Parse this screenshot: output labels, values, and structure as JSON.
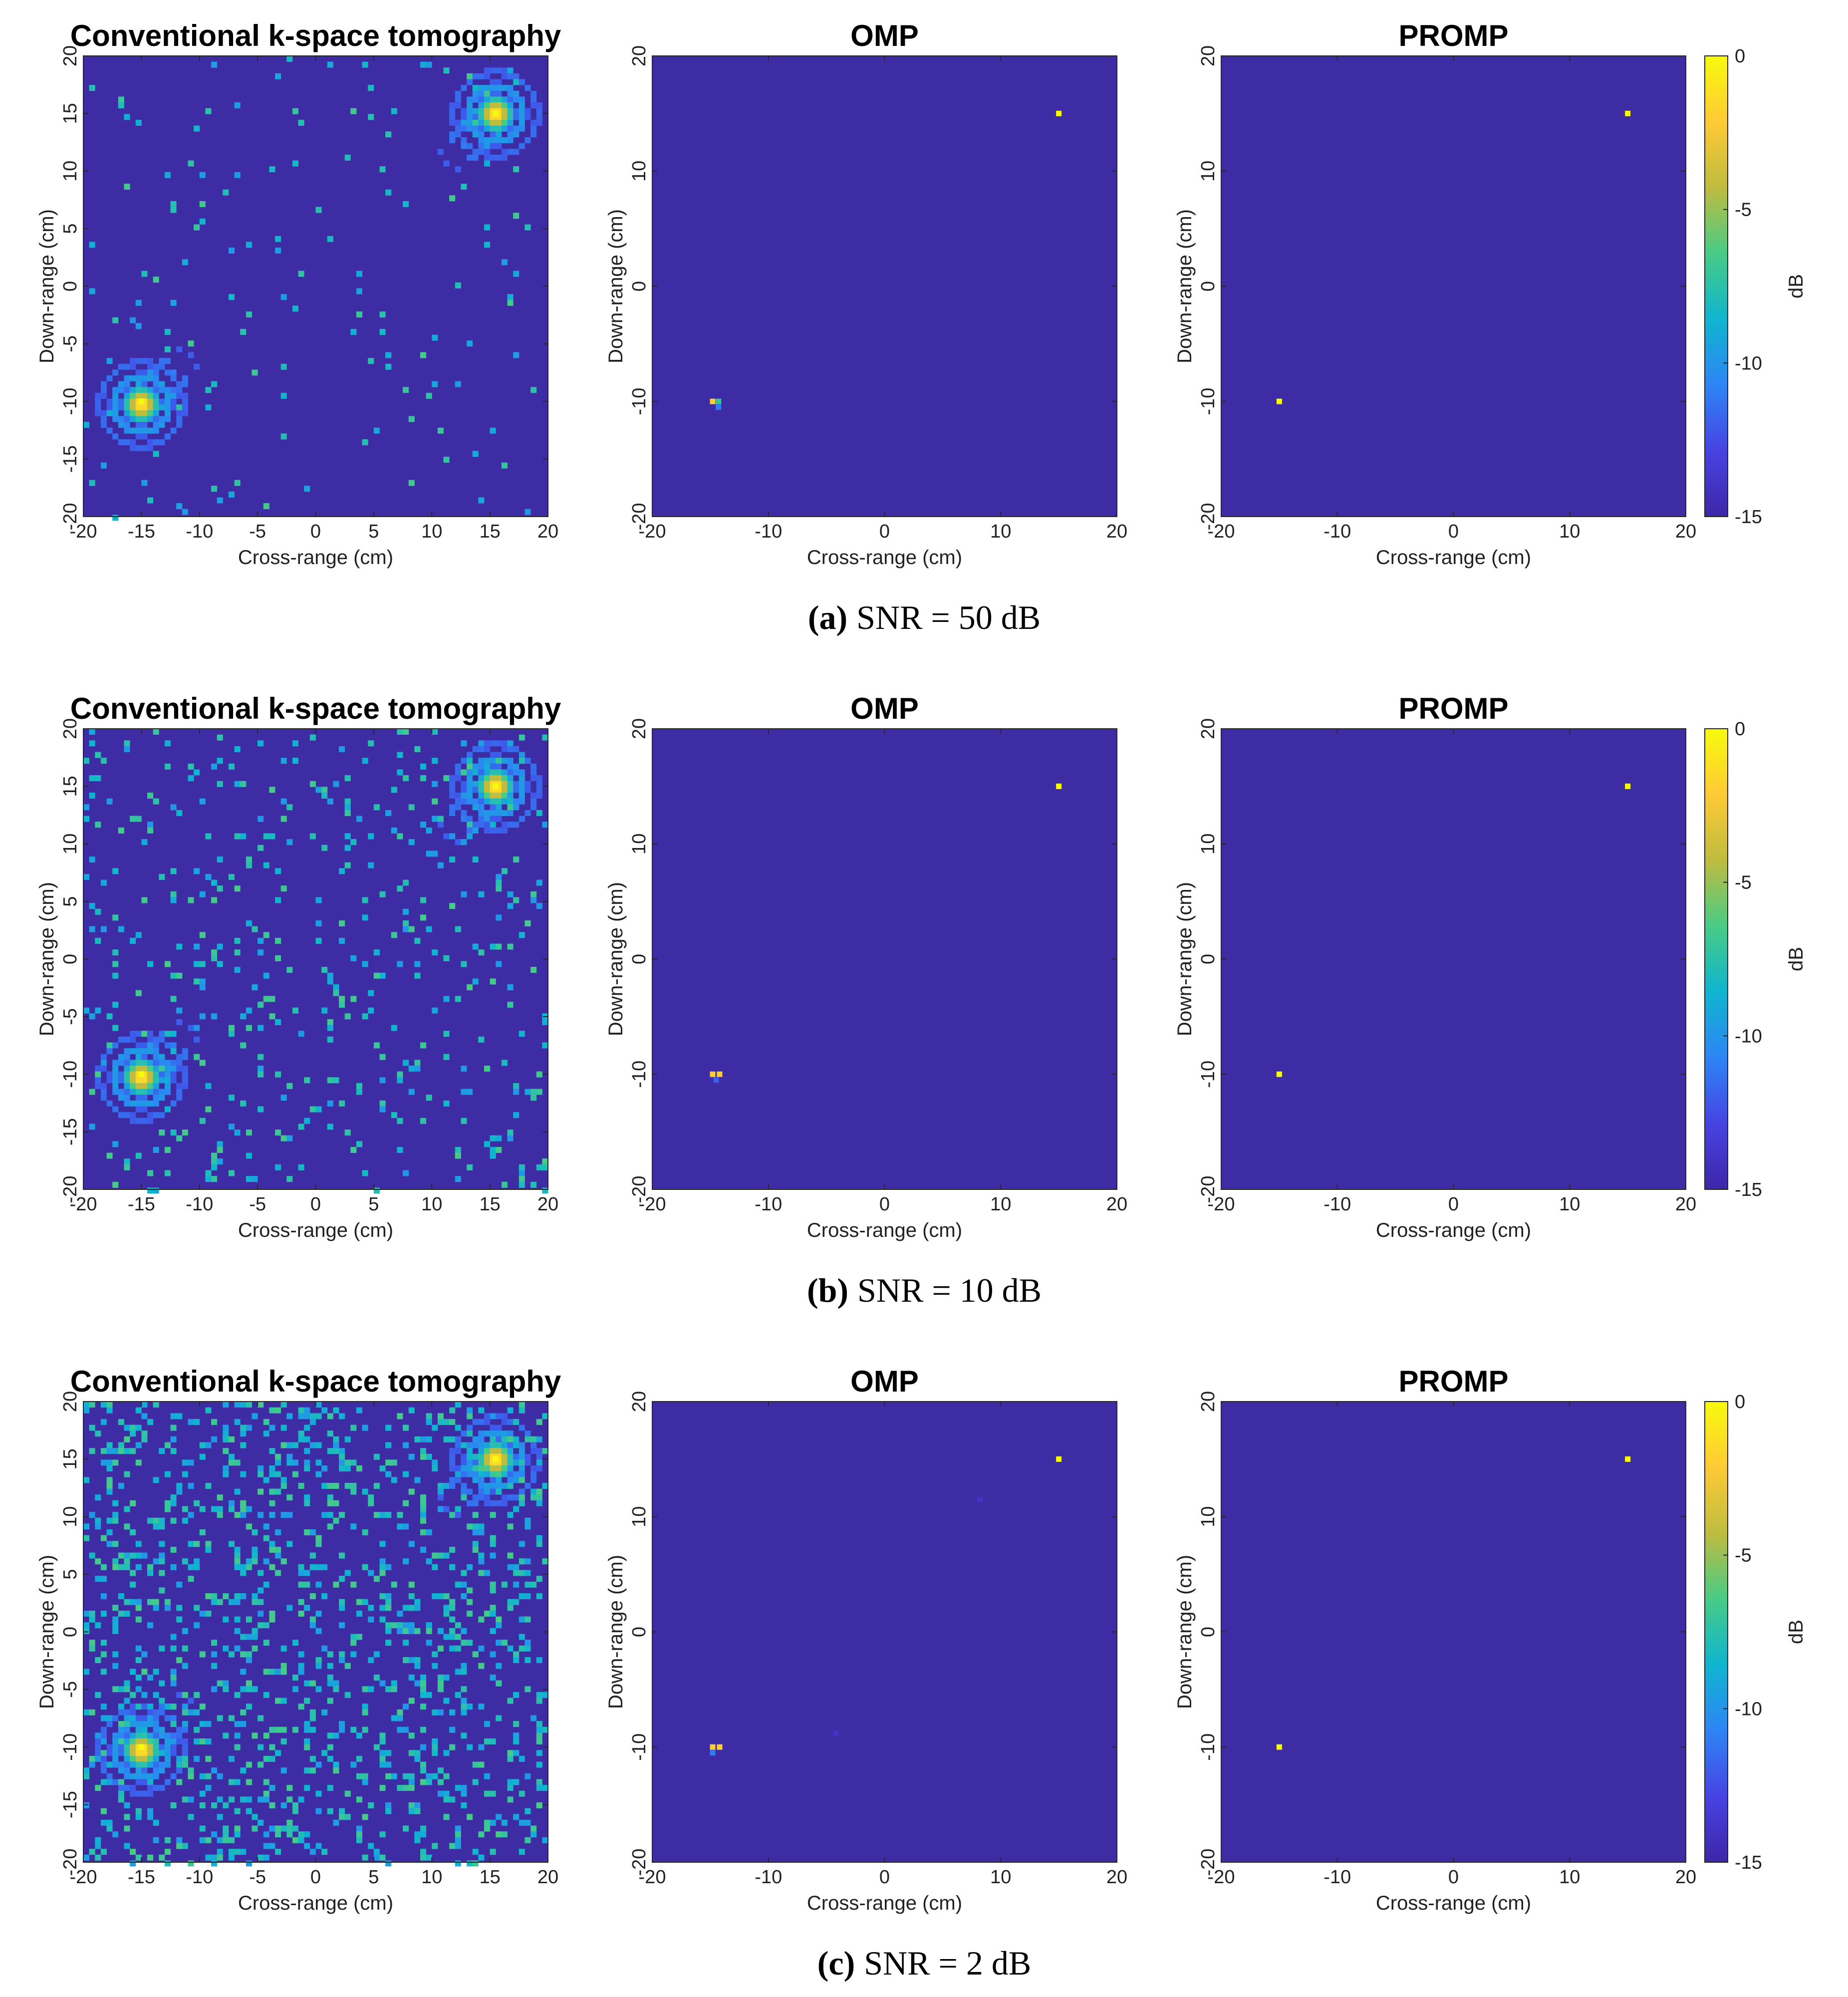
{
  "colors": {
    "background_level": "#3e2ca4",
    "colormap": [
      "#3e26a8",
      "#4743e3",
      "#2d85f5",
      "#0fb5cf",
      "#48cb86",
      "#bfbc3f",
      "#feca35",
      "#f8fa0d"
    ]
  },
  "chart_data": [
    {
      "group": "a",
      "caption_letter": "(a)",
      "caption_text": "SNR = 50 dB",
      "panels": [
        {
          "type": "heatmap",
          "title": "Conventional k-space tomography",
          "xlabel": "Cross-range (cm)",
          "ylabel": "Down-range (cm)",
          "xlim": [
            -20,
            20
          ],
          "ylim": [
            -20,
            20
          ],
          "xticks": [
            "-20",
            "-15",
            "-10",
            "-5",
            "0",
            "5",
            "10",
            "15",
            "20"
          ],
          "yticks": [
            "-20",
            "-15",
            "-10",
            "-5",
            "0",
            "5",
            "10",
            "15",
            "20"
          ],
          "targets": [
            {
              "x": -15,
              "y": -10,
              "value": 0
            },
            {
              "x": 15.5,
              "y": 15,
              "value": 0
            }
          ],
          "sidelobe_level_dB": -11,
          "noise_level": 0.02
        },
        {
          "type": "heatmap",
          "title": "OMP",
          "xlabel": "Cross-range (cm)",
          "ylabel": "Down-range (cm)",
          "xlim": [
            -20,
            20
          ],
          "ylim": [
            -20,
            20
          ],
          "xticks": [
            "-20",
            "-10",
            "0",
            "10",
            "20"
          ],
          "yticks": [
            "-20",
            "-10",
            "0",
            "10",
            "20"
          ],
          "targets": [
            {
              "x": 15,
              "y": 15,
              "value": 0
            },
            {
              "x": -14.8,
              "y": -10,
              "value": -2
            },
            {
              "x": -14.3,
              "y": -10,
              "value": -7
            },
            {
              "x": -14.3,
              "y": -10.5,
              "value": -11
            }
          ]
        },
        {
          "type": "heatmap",
          "title": "PROMP",
          "xlabel": "Cross-range (cm)",
          "ylabel": "Down-range (cm)",
          "xlim": [
            -20,
            20
          ],
          "ylim": [
            -20,
            20
          ],
          "xticks": [
            "-20",
            "-10",
            "0",
            "10",
            "20"
          ],
          "yticks": [
            "-20",
            "-10",
            "0",
            "10",
            "20"
          ],
          "targets": [
            {
              "x": 15,
              "y": 15,
              "value": 0
            },
            {
              "x": -15,
              "y": -10,
              "value": 0
            }
          ]
        }
      ],
      "colorbar": {
        "label": "dB",
        "range": [
          -15,
          0
        ],
        "ticks": [
          "0",
          "-5",
          "-10",
          "-15"
        ]
      }
    },
    {
      "group": "b",
      "caption_letter": "(b)",
      "caption_text": "SNR = 10 dB",
      "panels": [
        {
          "type": "heatmap",
          "title": "Conventional k-space tomography",
          "xlabel": "Cross-range (cm)",
          "ylabel": "Down-range (cm)",
          "xlim": [
            -20,
            20
          ],
          "ylim": [
            -20,
            20
          ],
          "xticks": [
            "-20",
            "-15",
            "-10",
            "-5",
            "0",
            "5",
            "10",
            "15",
            "20"
          ],
          "yticks": [
            "-20",
            "-15",
            "-10",
            "-5",
            "0",
            "5",
            "10",
            "15",
            "20"
          ],
          "targets": [
            {
              "x": -15,
              "y": -10,
              "value": 0
            },
            {
              "x": 15.5,
              "y": 15,
              "value": 0
            }
          ],
          "sidelobe_level_dB": -11,
          "noise_level": 0.06
        },
        {
          "type": "heatmap",
          "title": "OMP",
          "xlabel": "Cross-range (cm)",
          "ylabel": "Down-range (cm)",
          "xlim": [
            -20,
            20
          ],
          "ylim": [
            -20,
            20
          ],
          "xticks": [
            "-20",
            "-10",
            "0",
            "10",
            "20"
          ],
          "yticks": [
            "-20",
            "-10",
            "0",
            "10",
            "20"
          ],
          "targets": [
            {
              "x": 15,
              "y": 15,
              "value": 0
            },
            {
              "x": -14.8,
              "y": -10,
              "value": -2
            },
            {
              "x": -14.2,
              "y": -10,
              "value": -2
            },
            {
              "x": -14.5,
              "y": -10.5,
              "value": -12
            }
          ]
        },
        {
          "type": "heatmap",
          "title": "PROMP",
          "xlabel": "Cross-range (cm)",
          "ylabel": "Down-range (cm)",
          "xlim": [
            -20,
            20
          ],
          "ylim": [
            -20,
            20
          ],
          "xticks": [
            "-20",
            "-10",
            "0",
            "10",
            "20"
          ],
          "yticks": [
            "-20",
            "-10",
            "0",
            "10",
            "20"
          ],
          "targets": [
            {
              "x": 15,
              "y": 15,
              "value": 0
            },
            {
              "x": -15,
              "y": -10,
              "value": 0
            }
          ]
        }
      ],
      "colorbar": {
        "label": "dB",
        "range": [
          -15,
          0
        ],
        "ticks": [
          "0",
          "-5",
          "-10",
          "-15"
        ]
      }
    },
    {
      "group": "c",
      "caption_letter": "(c)",
      "caption_text": "SNR = 2 dB",
      "panels": [
        {
          "type": "heatmap",
          "title": "Conventional k-space tomography",
          "xlabel": "Cross-range (cm)",
          "ylabel": "Down-range (cm)",
          "xlim": [
            -20,
            20
          ],
          "ylim": [
            -20,
            20
          ],
          "xticks": [
            "-20",
            "-15",
            "-10",
            "-5",
            "0",
            "5",
            "10",
            "15",
            "20"
          ],
          "yticks": [
            "-20",
            "-15",
            "-10",
            "-5",
            "0",
            "5",
            "10",
            "15",
            "20"
          ],
          "targets": [
            {
              "x": -15,
              "y": -10,
              "value": 0
            },
            {
              "x": 15.5,
              "y": 15,
              "value": 0
            }
          ],
          "sidelobe_level_dB": -11,
          "noise_level": 0.18
        },
        {
          "type": "heatmap",
          "title": "OMP",
          "xlabel": "Cross-range (cm)",
          "ylabel": "Down-range (cm)",
          "xlim": [
            -20,
            20
          ],
          "ylim": [
            -20,
            20
          ],
          "xticks": [
            "-20",
            "-10",
            "0",
            "10",
            "20"
          ],
          "yticks": [
            "-20",
            "-10",
            "0",
            "10",
            "20"
          ],
          "targets": [
            {
              "x": 15,
              "y": 15,
              "value": 0
            },
            {
              "x": -14.8,
              "y": -10,
              "value": -2
            },
            {
              "x": -14.2,
              "y": -10,
              "value": -2
            },
            {
              "x": -14.8,
              "y": -10.5,
              "value": -11
            },
            {
              "x": 8.2,
              "y": 11.5,
              "value": -14
            },
            {
              "x": -4.2,
              "y": -8.8,
              "value": -14
            }
          ]
        },
        {
          "type": "heatmap",
          "title": "PROMP",
          "xlabel": "Cross-range (cm)",
          "ylabel": "Down-range (cm)",
          "xlim": [
            -20,
            20
          ],
          "ylim": [
            -20,
            20
          ],
          "xticks": [
            "-20",
            "-10",
            "0",
            "10",
            "20"
          ],
          "yticks": [
            "-20",
            "-10",
            "0",
            "10",
            "20"
          ],
          "targets": [
            {
              "x": 15,
              "y": 15,
              "value": 0
            },
            {
              "x": -15,
              "y": -10,
              "value": 0
            }
          ]
        }
      ],
      "colorbar": {
        "label": "dB",
        "range": [
          -15,
          0
        ],
        "ticks": [
          "0",
          "-5",
          "-10",
          "-15"
        ]
      }
    }
  ]
}
